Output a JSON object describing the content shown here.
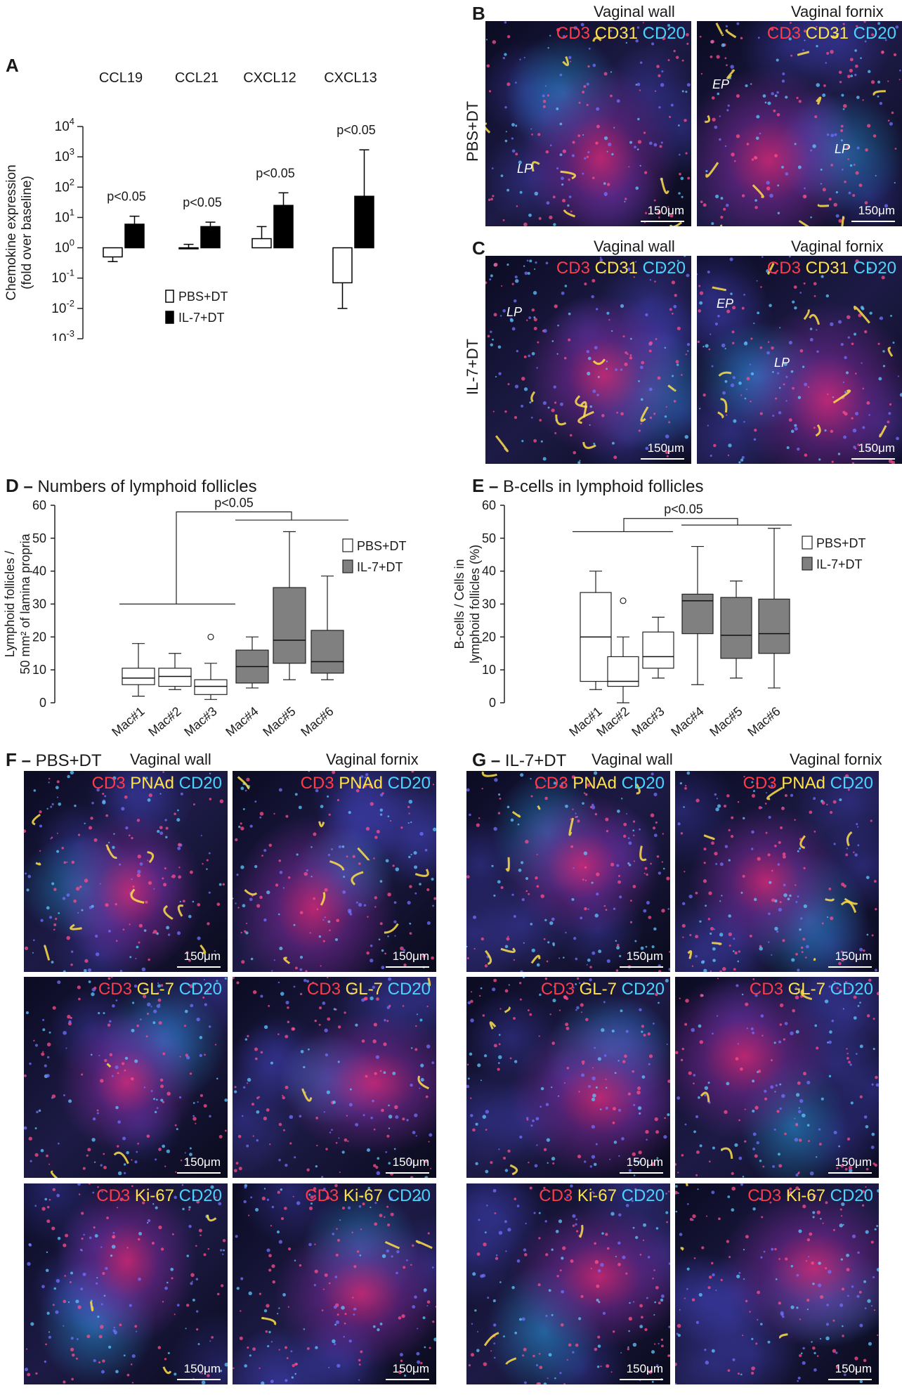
{
  "panels": {
    "A": {
      "letter": "A"
    },
    "B": {
      "letter": "B",
      "row_label": "PBS+DT"
    },
    "C": {
      "letter": "C",
      "row_label": "IL-7+DT"
    },
    "D": {
      "letter": "D",
      "heading": "Numbers of lymphoid follicles"
    },
    "E": {
      "letter": "E",
      "heading": "B-cells in lymphoid follicles"
    },
    "F": {
      "letter": "F",
      "heading": "PBS+DT"
    },
    "G": {
      "letter": "G",
      "heading": "IL-7+DT"
    }
  },
  "columns": {
    "wall": "Vaginal wall",
    "fornix": "Vaginal fornix"
  },
  "stains": {
    "cd31": {
      "a": "CD3",
      "b": "CD31",
      "c": "CD20"
    },
    "pnad": {
      "a": "CD3",
      "b": "PNAd",
      "c": "CD20"
    },
    "gl7": {
      "a": "CD3",
      "b": "GL-7",
      "c": "CD20"
    },
    "ki67": {
      "a": "CD3",
      "b": "Ki-67",
      "c": "CD20"
    }
  },
  "overlay_labels": {
    "lp": "LP",
    "ep": "EP"
  },
  "scale_bar": "150μm",
  "colors": {
    "red": "#ff3b4a",
    "yellow": "#ffe14a",
    "cyan": "#4ad3ff",
    "pbs_box": "#ffffff",
    "il7_box": "#808080"
  },
  "chart_data": [
    {
      "id": "A",
      "type": "bar",
      "categories": [
        "CCL19",
        "CCL21",
        "CXCL12",
        "CXCL13"
      ],
      "ylabel": "Chemokine expression",
      "ylabel2": "(fold over baseline)",
      "yscale": "log",
      "ylim": [
        0.001,
        10000
      ],
      "yticks": [
        {
          "v": 0.001,
          "base": "10",
          "exp": "-3"
        },
        {
          "v": 0.01,
          "base": "10",
          "exp": "-2"
        },
        {
          "v": 0.1,
          "base": "10",
          "exp": "-1"
        },
        {
          "v": 1,
          "base": "10",
          "exp": "0"
        },
        {
          "v": 10,
          "base": "10",
          "exp": "1"
        },
        {
          "v": 100,
          "base": "10",
          "exp": "2"
        },
        {
          "v": 1000,
          "base": "10",
          "exp": "3"
        },
        {
          "v": 10000,
          "base": "10",
          "exp": "4"
        }
      ],
      "series": [
        {
          "name": "PBS+DT",
          "color": "#ffffff",
          "values": [
            0.5,
            1.0,
            2.0,
            0.07
          ],
          "err": [
            0.35,
            1.3,
            5.0,
            0.01
          ]
        },
        {
          "name": "IL-7+DT",
          "color": "#000000",
          "values": [
            6,
            5,
            25,
            50
          ],
          "err": [
            11,
            7,
            65,
            1700
          ]
        }
      ],
      "annotations": [
        "p<0.05",
        "p<0.05",
        "p<0.05",
        "p<0.05"
      ],
      "legend": "bottom-left"
    },
    {
      "id": "D",
      "type": "box",
      "categories": [
        "Mac#1",
        "Mac#2",
        "Mac#3",
        "Mac#4",
        "Mac#5",
        "Mac#6"
      ],
      "ylabel": "Lymphoid follicles /",
      "ylabel2": "50 mm² of lamina propria",
      "ylim": [
        0,
        60
      ],
      "yticks": [
        0,
        10,
        20,
        30,
        40,
        50,
        60
      ],
      "boxes": [
        {
          "group": "PBS+DT",
          "min": 2,
          "q1": 5.5,
          "median": 7.5,
          "q3": 10.5,
          "max": 18
        },
        {
          "group": "PBS+DT",
          "min": 4,
          "q1": 5,
          "median": 8,
          "q3": 10.5,
          "max": 15
        },
        {
          "group": "PBS+DT",
          "min": 1,
          "q1": 2.5,
          "median": 5,
          "q3": 7,
          "max": 12,
          "outliers": [
            20
          ]
        },
        {
          "group": "IL-7+DT",
          "min": 4.5,
          "q1": 6,
          "median": 11,
          "q3": 16,
          "max": 20
        },
        {
          "group": "IL-7+DT",
          "min": 7,
          "q1": 12,
          "median": 19,
          "q3": 35,
          "max": 52
        },
        {
          "group": "IL-7+DT",
          "min": 7,
          "q1": 9,
          "median": 12.5,
          "q3": 22,
          "max": 38.5
        }
      ],
      "significance": "p<0.05",
      "legend": [
        "PBS+DT",
        "IL-7+DT"
      ]
    },
    {
      "id": "E",
      "type": "box",
      "categories": [
        "Mac#1",
        "Mac#2",
        "Mac#3",
        "Mac#4",
        "Mac#5",
        "Mac#6"
      ],
      "ylabel": "B-cells / Cells in",
      "ylabel2": "lymphoid follicles (%)",
      "ylim": [
        0,
        60
      ],
      "yticks": [
        0,
        10,
        20,
        30,
        40,
        50,
        60
      ],
      "boxes": [
        {
          "group": "PBS+DT",
          "min": 4,
          "q1": 6.5,
          "median": 20,
          "q3": 33.5,
          "max": 40
        },
        {
          "group": "PBS+DT",
          "min": 0,
          "q1": 5,
          "median": 6.5,
          "q3": 14,
          "max": 20,
          "outliers": [
            31
          ]
        },
        {
          "group": "PBS+DT",
          "min": 7.5,
          "q1": 10.5,
          "median": 14,
          "q3": 21.5,
          "max": 26
        },
        {
          "group": "IL-7+DT",
          "min": 5.5,
          "q1": 21,
          "median": 31,
          "q3": 33,
          "max": 47.5
        },
        {
          "group": "IL-7+DT",
          "min": 7.5,
          "q1": 13.5,
          "median": 20.5,
          "q3": 32,
          "max": 37
        },
        {
          "group": "IL-7+DT",
          "min": 4.5,
          "q1": 15,
          "median": 21,
          "q3": 31.5,
          "max": 53
        }
      ],
      "significance": "p<0.05",
      "legend": [
        "PBS+DT",
        "IL-7+DT"
      ]
    }
  ]
}
